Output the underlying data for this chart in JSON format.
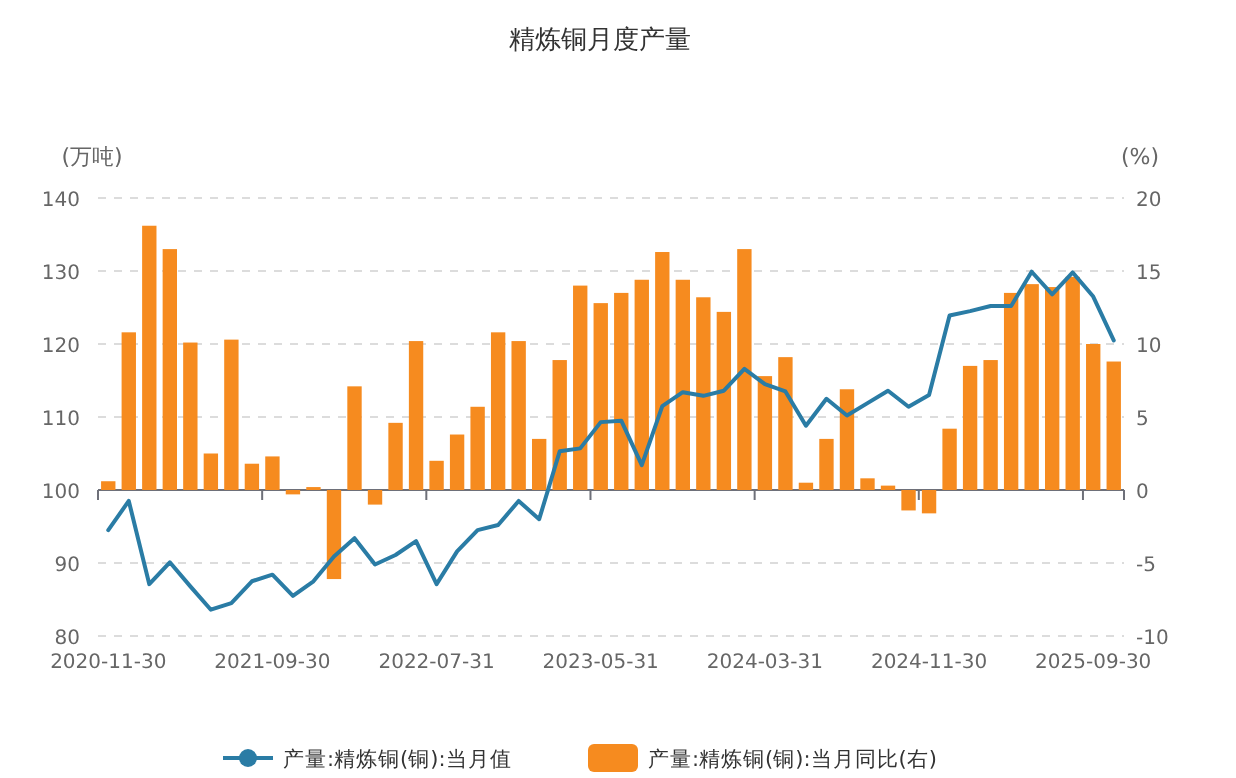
{
  "chart_data": {
    "type": "bar",
    "title": "精炼铜月度产量",
    "ylabel": "(万吨)",
    "y2label": "(%)",
    "categories": [
      "2020-11-30",
      null,
      null,
      null,
      null,
      null,
      null,
      null,
      "2021-09-30",
      null,
      null,
      null,
      null,
      null,
      null,
      null,
      "2022-07-31",
      null,
      null,
      null,
      null,
      null,
      null,
      null,
      "2023-05-31",
      null,
      null,
      null,
      null,
      null,
      null,
      null,
      "2024-03-31",
      null,
      null,
      null,
      null,
      null,
      null,
      null,
      "2024-11-30",
      null,
      null,
      null,
      null,
      null,
      null,
      null,
      "2025-09-30",
      null
    ],
    "ylim": [
      80,
      140
    ],
    "yticks": [
      80,
      90,
      100,
      110,
      120,
      130,
      140
    ],
    "y2lim": [
      -10,
      20
    ],
    "y2ticks": [
      -10,
      -5,
      0,
      5,
      10,
      15,
      20
    ],
    "grid": "y",
    "legend": "bottom",
    "series": [
      {
        "name": "产量:精炼铜(铜):当月值",
        "type": "line",
        "color": "#2a7ca5",
        "values": [
          94.5,
          98.5,
          87.1,
          90.1,
          86.8,
          83.6,
          84.5,
          87.5,
          88.4,
          85.5,
          87.5,
          90.9,
          93.4,
          89.8,
          91.1,
          93.0,
          87.1,
          91.6,
          94.5,
          95.2,
          98.5,
          96.0,
          105.3,
          105.7,
          109.3,
          109.5,
          103.4,
          111.5,
          113.4,
          112.9,
          113.6,
          116.6,
          114.5,
          113.5,
          108.8,
          112.5,
          110.2,
          111.9,
          113.6,
          111.4,
          113.0,
          123.9,
          124.5,
          125.2,
          125.2,
          129.9,
          126.8,
          129.8,
          126.5,
          120.5
        ]
      },
      {
        "name": "产量:精炼铜(铜):当月同比(右)",
        "axis": "y2",
        "color": "#f68b1f",
        "values": [
          0.6,
          10.8,
          18.1,
          16.5,
          10.1,
          2.5,
          10.3,
          1.8,
          2.3,
          -0.3,
          0.2,
          -6.1,
          7.1,
          -1.0,
          4.6,
          10.2,
          2.0,
          3.8,
          5.7,
          10.8,
          10.2,
          3.5,
          8.9,
          14.0,
          12.8,
          13.5,
          14.4,
          16.3,
          14.4,
          13.2,
          12.2,
          16.5,
          7.8,
          9.1,
          0.5,
          3.5,
          6.9,
          0.8,
          0.3,
          -1.4,
          -1.6,
          4.2,
          8.5,
          8.9,
          13.5,
          14.1,
          13.9,
          14.6,
          10.0,
          8.8
        ]
      }
    ]
  }
}
